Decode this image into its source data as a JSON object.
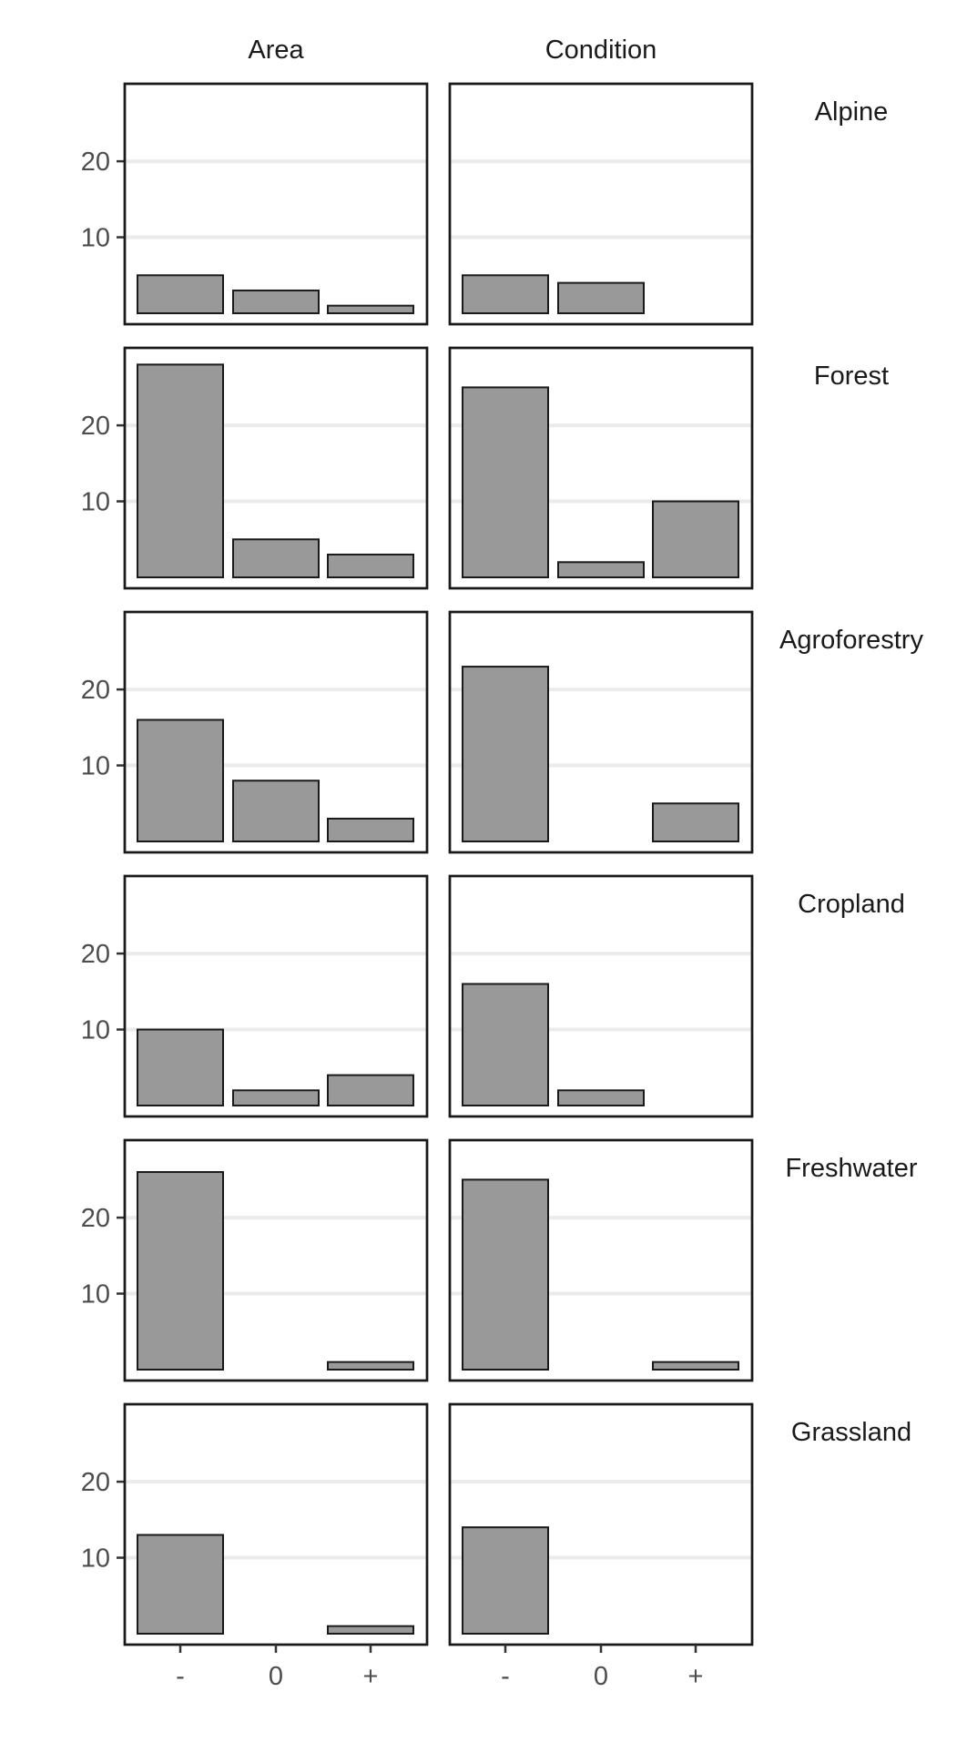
{
  "chart_data": {
    "type": "bar",
    "facet_columns": [
      "Area",
      "Condition"
    ],
    "facet_rows": [
      "Alpine",
      "Forest",
      "Agroforestry",
      "Cropland",
      "Freshwater",
      "Grassland"
    ],
    "categories": [
      "-",
      "0",
      "+"
    ],
    "ylim": [
      0,
      29
    ],
    "yticks": [
      10,
      20
    ],
    "ytick_labels": [
      "10",
      "20"
    ],
    "grid": true,
    "values": {
      "Alpine": {
        "Area": [
          5,
          3,
          1
        ],
        "Condition": [
          5,
          4,
          0
        ]
      },
      "Forest": {
        "Area": [
          28,
          5,
          3
        ],
        "Condition": [
          25,
          2,
          10
        ]
      },
      "Agroforestry": {
        "Area": [
          16,
          8,
          3
        ],
        "Condition": [
          23,
          0,
          5
        ]
      },
      "Cropland": {
        "Area": [
          10,
          2,
          4
        ],
        "Condition": [
          16,
          2,
          0
        ]
      },
      "Freshwater": {
        "Area": [
          26,
          0,
          1
        ],
        "Condition": [
          25,
          0,
          1
        ]
      },
      "Grassland": {
        "Area": [
          13,
          0,
          1
        ],
        "Condition": [
          14,
          0,
          0
        ]
      }
    },
    "bar_fill": "#999999",
    "bar_stroke": "#1a1a1a",
    "panel_border": "#1a1a1a",
    "grid_color": "#ebebeb"
  }
}
